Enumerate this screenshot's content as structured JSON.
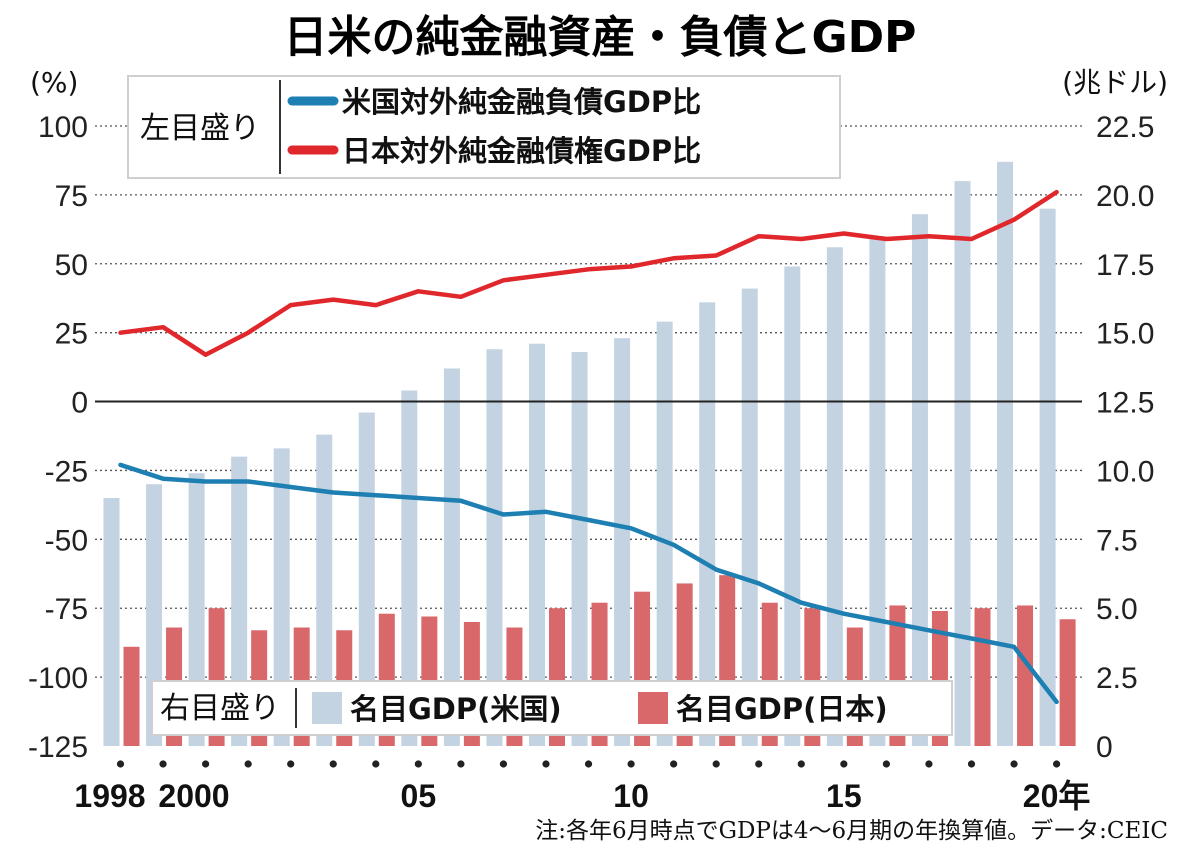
{
  "chart_data": {
    "type": "bar+line",
    "title": "日米の純金融資産・負債とGDP",
    "left_unit": "(%)",
    "right_unit": "(兆ドル)",
    "left_axis": {
      "ylim": [
        -125,
        100
      ],
      "ticks": [
        100,
        75,
        50,
        25,
        0,
        -25,
        -50,
        -75,
        -100,
        -125
      ]
    },
    "right_axis": {
      "ylim": [
        0,
        22.5
      ],
      "ticks": [
        22.5,
        20.0,
        17.5,
        15.0,
        12.5,
        10.0,
        7.5,
        5.0,
        2.5,
        0
      ]
    },
    "years": [
      1998,
      1999,
      2000,
      2001,
      2002,
      2003,
      2004,
      2005,
      2006,
      2007,
      2008,
      2009,
      2010,
      2011,
      2012,
      2013,
      2014,
      2015,
      2016,
      2017,
      2018,
      2019,
      2020
    ],
    "x_tick_labels": [
      {
        "year": 1998,
        "label": "1998"
      },
      {
        "year": 2000,
        "label": "2000"
      },
      {
        "year": 2005,
        "label": "05"
      },
      {
        "year": 2010,
        "label": "10"
      },
      {
        "year": 2015,
        "label": "15"
      },
      {
        "year": 2020,
        "label": "20年"
      }
    ],
    "legend_left": {
      "label": "左目盛り",
      "items": [
        {
          "name": "米国対外純金融負債GDP比",
          "color": "#1e7fb2"
        },
        {
          "name": "日本対外純金融債権GDP比",
          "color": "#e0272c"
        }
      ]
    },
    "legend_right": {
      "label": "右目盛り",
      "items": [
        {
          "name": "名目GDP(米国)",
          "color": "#c3d3e2"
        },
        {
          "name": "名目GDP(日本)",
          "color": "#d9686b"
        }
      ]
    },
    "series": [
      {
        "name": "名目GDP(米国)",
        "axis": "right",
        "kind": "bar",
        "color": "#c3d3e2",
        "values": [
          9.0,
          9.5,
          9.9,
          10.5,
          10.8,
          11.3,
          12.1,
          12.9,
          13.7,
          14.4,
          14.6,
          14.3,
          14.8,
          15.4,
          16.1,
          16.6,
          17.4,
          18.1,
          18.5,
          19.3,
          20.5,
          21.2,
          19.5
        ]
      },
      {
        "name": "名目GDP(日本)",
        "axis": "right",
        "kind": "bar",
        "color": "#d9686b",
        "values": [
          3.6,
          4.3,
          5.0,
          4.2,
          4.3,
          4.2,
          4.8,
          4.7,
          4.5,
          4.3,
          5.0,
          5.2,
          5.6,
          5.9,
          6.2,
          5.2,
          5.0,
          4.3,
          5.1,
          4.9,
          5.0,
          5.1,
          4.6
        ]
      },
      {
        "name": "米国対外純金融負債GDP比",
        "axis": "left",
        "kind": "line",
        "color": "#1e7fb2",
        "values": [
          -23,
          -28,
          -29,
          -29,
          -31,
          -33,
          -34,
          -35,
          -36,
          -41,
          -40,
          -43,
          -46,
          -52,
          -61,
          -66,
          -73,
          -77,
          -80,
          -83,
          -86,
          -89,
          -109
        ]
      },
      {
        "name": "日本対外純金融債権GDP比",
        "axis": "left",
        "kind": "line",
        "color": "#e0272c",
        "values": [
          25,
          27,
          17,
          25,
          35,
          37,
          35,
          40,
          38,
          44,
          46,
          48,
          49,
          52,
          53,
          60,
          59,
          61,
          59,
          60,
          59,
          66,
          76
        ]
      }
    ],
    "grid": "horizontal-dotted",
    "note": "注:各年6月時点でGDPは4～6月期の年換算値。データ:CEIC"
  }
}
